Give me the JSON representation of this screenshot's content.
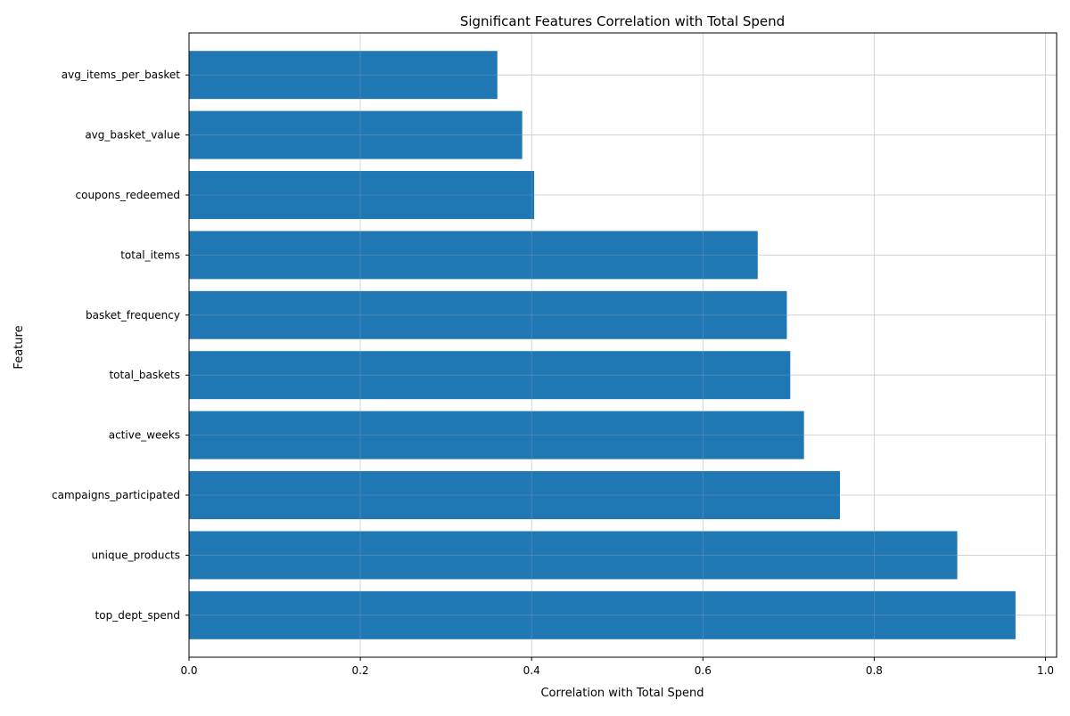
{
  "chart_data": {
    "type": "bar",
    "orientation": "horizontal",
    "title": "Significant Features Correlation with Total Spend",
    "xlabel": "Correlation with Total Spend",
    "ylabel": "Feature",
    "xlim": [
      0,
      1.013
    ],
    "xticks": [
      0.0,
      0.2,
      0.4,
      0.6,
      0.8,
      1.0
    ],
    "xtick_labels": [
      "0.0",
      "0.2",
      "0.4",
      "0.6",
      "0.8",
      "1.0"
    ],
    "grid": true,
    "bar_color": "#1f77b4",
    "categories": [
      "top_dept_spend",
      "unique_products",
      "campaigns_participated",
      "active_weeks",
      "total_baskets",
      "basket_frequency",
      "total_items",
      "coupons_redeemed",
      "avg_basket_value",
      "avg_items_per_basket"
    ],
    "values": [
      0.965,
      0.897,
      0.76,
      0.718,
      0.702,
      0.698,
      0.664,
      0.403,
      0.389,
      0.36
    ]
  }
}
